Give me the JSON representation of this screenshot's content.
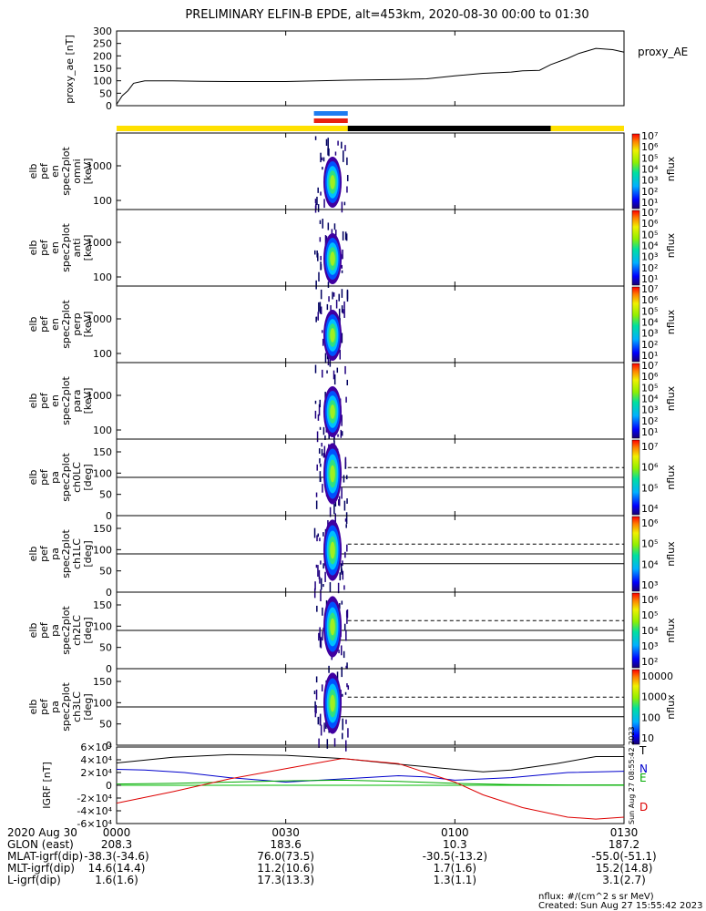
{
  "title": "PRELIMINARY ELFIN-B EPDE, alt=453km, 2020-08-30 00:00 to 01:30",
  "colors": {
    "yellow": "#ffe000",
    "black": "#000000",
    "blue": "#1e7cf0",
    "red": "#e82010",
    "ae_line": "#000000",
    "zero_line": "#00bb00"
  },
  "chart_data": [
    {
      "type": "line",
      "panel": "proxy_ae",
      "ylabel": "proxy_ae [nT]",
      "legend": "proxy_AE",
      "ylim": [
        0,
        300
      ],
      "yticks": [
        "0",
        "50",
        "100",
        "150",
        "200",
        "250",
        "300"
      ],
      "x_minutes": [
        0,
        1,
        2,
        3,
        5,
        10,
        15,
        20,
        30,
        40,
        50,
        55,
        60,
        65,
        70,
        72,
        75,
        77,
        80,
        82,
        85,
        88,
        90
      ],
      "y": [
        5,
        40,
        60,
        90,
        100,
        100,
        98,
        97,
        97,
        102,
        105,
        108,
        120,
        130,
        135,
        140,
        142,
        165,
        190,
        210,
        230,
        225,
        215
      ]
    },
    {
      "type": "bar",
      "panel": "state_bar",
      "segments": [
        {
          "color": "yellow",
          "start": "00:00",
          "end": "00:41"
        },
        {
          "color": "black",
          "start": "00:41",
          "end": "01:17"
        },
        {
          "color": "yellow",
          "start": "01:17",
          "end": "01:30"
        }
      ],
      "markers": [
        {
          "color": "blue",
          "start": "00:35",
          "end": "00:41"
        },
        {
          "color": "red",
          "start": "00:35",
          "end": "00:41"
        }
      ]
    },
    {
      "type": "heatmap",
      "panel": "energy_spectra",
      "panels": [
        {
          "ylabel": "elb pef en spec2plot omni [keV]",
          "yticks": [
            "100",
            "1000"
          ]
        },
        {
          "ylabel": "elb pef en spec2plot anti [keV]",
          "yticks": [
            "100",
            "1000"
          ]
        },
        {
          "ylabel": "elb pef en spec2plot perp [keV]",
          "yticks": [
            "100",
            "1000"
          ]
        },
        {
          "ylabel": "elb pef en spec2plot para [keV]",
          "yticks": [
            "100",
            "1000"
          ]
        }
      ],
      "time_range": [
        "00:35",
        "00:41"
      ],
      "colorbar_label": "nflux",
      "colorbar_ticks": [
        "10^1",
        "10^2",
        "10^3",
        "10^4",
        "10^5",
        "10^6",
        "10^7"
      ]
    },
    {
      "type": "heatmap",
      "panel": "pitch_angle_spectra",
      "panels": [
        {
          "ylabel": "elb pef pa spec2plot ch0LC [deg]",
          "cbar": [
            "10^4",
            "10^5",
            "10^6",
            "10^7"
          ]
        },
        {
          "ylabel": "elb pef pa spec2plot ch1LC [deg]",
          "cbar": [
            "10^3",
            "10^4",
            "10^5",
            "10^6"
          ]
        },
        {
          "ylabel": "elb pef pa spec2plot ch2LC [deg]",
          "cbar": [
            "10^2",
            "10^3",
            "10^4",
            "10^5",
            "10^6"
          ]
        },
        {
          "ylabel": "elb pef pa spec2plot ch3LC [deg]",
          "cbar": [
            "10",
            "100",
            "1000",
            "10000"
          ]
        }
      ],
      "yticks": [
        "0",
        "50",
        "100",
        "150"
      ],
      "ylim": [
        0,
        180
      ],
      "colorbar_label": "nflux",
      "time_range": [
        "00:35",
        "00:41"
      ]
    },
    {
      "type": "line",
      "panel": "igrf",
      "ylabel": "IGRF [nT]",
      "ylim": [
        -60000,
        60000
      ],
      "yticks": [
        "-6×10⁴",
        "-4×10⁴",
        "-2×10⁴",
        "0",
        "2×10⁴",
        "4×10⁴",
        "6×10⁴"
      ],
      "series": [
        {
          "name": "T",
          "color": "#000000",
          "x_minutes": [
            0,
            10,
            20,
            30,
            40,
            50,
            60,
            65,
            70,
            78,
            85,
            90
          ],
          "values": [
            35000,
            44000,
            48000,
            47000,
            42000,
            33000,
            25000,
            21000,
            24000,
            34000,
            45000,
            45000
          ]
        },
        {
          "name": "N",
          "color": "#0000cc",
          "x_minutes": [
            0,
            5,
            12,
            20,
            30,
            40,
            50,
            55,
            60,
            70,
            80,
            90
          ],
          "values": [
            25000,
            24000,
            20000,
            12000,
            5000,
            10000,
            15000,
            13000,
            8000,
            12000,
            20000,
            22000
          ]
        },
        {
          "name": "E",
          "color": "#00aa00",
          "x_minutes": [
            0,
            10,
            20,
            30,
            40,
            50,
            60,
            70,
            80,
            90
          ],
          "values": [
            2000,
            3000,
            5000,
            7000,
            8000,
            6000,
            3000,
            1000,
            500,
            500
          ]
        },
        {
          "name": "D",
          "color": "#dd0000",
          "x_minutes": [
            0,
            10,
            20,
            30,
            40,
            50,
            60,
            65,
            72,
            80,
            85,
            90
          ],
          "values": [
            -28000,
            -10000,
            10000,
            26000,
            42000,
            34000,
            5000,
            -15000,
            -35000,
            -50000,
            -53000,
            -50000
          ]
        }
      ]
    }
  ],
  "time_axis": {
    "date_label": "2020 Aug 30",
    "ticks": [
      "0000",
      "0030",
      "0100",
      "0130"
    ],
    "rows": [
      {
        "label": "GLON (east)",
        "values": [
          "208.3",
          "183.6",
          "10.3",
          "187.2"
        ]
      },
      {
        "label": "MLAT-igrf(dip)",
        "values": [
          "-38.3(-34.6)",
          "76.0(73.5)",
          "-30.5(-13.2)",
          "-55.0(-51.1)"
        ]
      },
      {
        "label": "MLT-igrf(dip)",
        "values": [
          "14.6(14.4)",
          "11.2(10.6)",
          "1.7(1.6)",
          "15.2(14.8)"
        ]
      },
      {
        "label": "L-igrf(dip)",
        "values": [
          "1.6(1.6)",
          "17.3(13.3)",
          "1.3(1.1)",
          "3.1(2.7)"
        ]
      }
    ]
  },
  "footer": {
    "units": "nflux: #/(cm^2 s sr MeV)",
    "created": "Created: Sun Aug 27 15:55:42 2023",
    "side_stamp": "Sun Aug 27 08:55:42 2023"
  }
}
